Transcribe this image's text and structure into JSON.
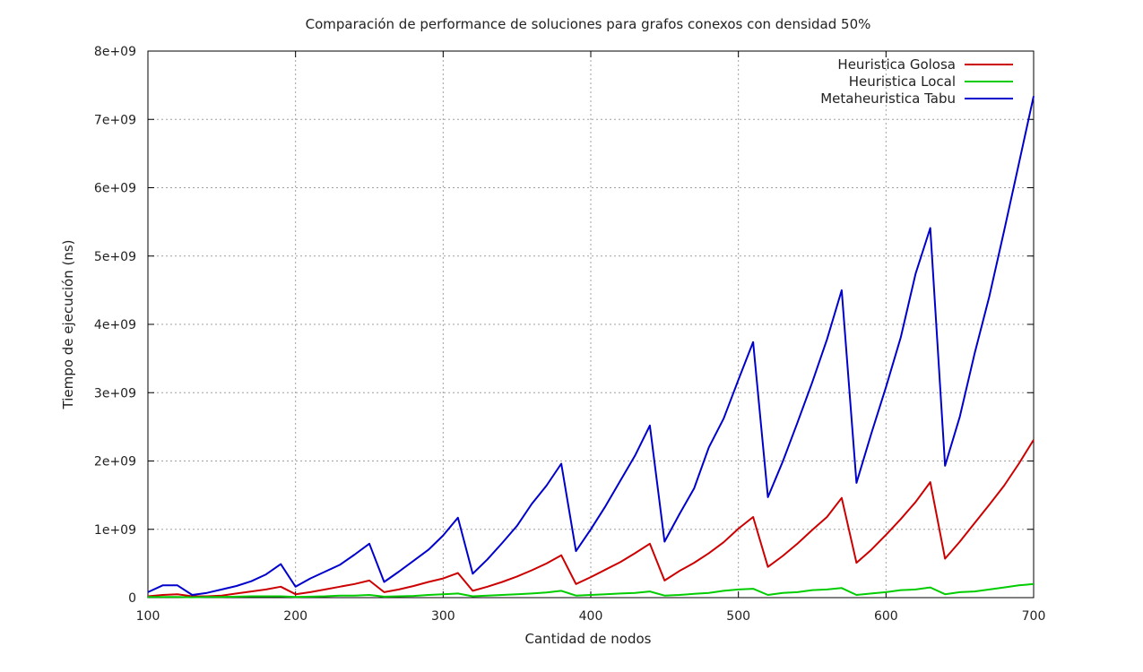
{
  "chart_data": {
    "type": "line",
    "title": "Comparación de performance de soluciones para grafos conexos con densidad 50%",
    "xlabel": "Cantidad de nodos",
    "ylabel": "Tiempo de ejecución (ns)",
    "xlim": [
      100,
      700
    ],
    "ylim": [
      0,
      8000000000
    ],
    "xticks": [
      100,
      200,
      300,
      400,
      500,
      600,
      700
    ],
    "xtick_labels": [
      "100",
      "200",
      "300",
      "400",
      "500",
      "600",
      "700"
    ],
    "yticks": [
      0,
      1000000000,
      2000000000,
      3000000000,
      4000000000,
      5000000000,
      6000000000,
      7000000000,
      8000000000
    ],
    "ytick_labels": [
      "0",
      "1e+09",
      "2e+09",
      "3e+09",
      "4e+09",
      "5e+09",
      "6e+09",
      "7e+09",
      "8e+09"
    ],
    "grid": true,
    "legend_position": "top-right",
    "x": [
      100,
      110,
      120,
      130,
      140,
      150,
      160,
      170,
      180,
      190,
      200,
      210,
      220,
      230,
      240,
      250,
      260,
      270,
      280,
      290,
      300,
      310,
      320,
      330,
      340,
      350,
      360,
      370,
      380,
      390,
      400,
      410,
      420,
      430,
      440,
      450,
      460,
      470,
      480,
      490,
      500,
      510,
      520,
      530,
      540,
      550,
      560,
      570,
      580,
      590,
      600,
      610,
      620,
      630,
      640,
      650,
      660,
      670,
      680,
      690,
      700
    ],
    "series": [
      {
        "name": "Heuristica Golosa",
        "color": "#cc0000",
        "values": [
          20000000,
          40000000,
          50000000,
          20000000,
          20000000,
          30000000,
          60000000,
          90000000,
          120000000,
          160000000,
          50000000,
          80000000,
          120000000,
          160000000,
          200000000,
          250000000,
          80000000,
          120000000,
          170000000,
          230000000,
          280000000,
          360000000,
          100000000,
          160000000,
          230000000,
          310000000,
          400000000,
          500000000,
          620000000,
          200000000,
          300000000,
          410000000,
          520000000,
          650000000,
          790000000,
          250000000,
          390000000,
          510000000,
          650000000,
          810000000,
          1010000000,
          1180000000,
          450000000,
          610000000,
          790000000,
          990000000,
          1180000000,
          1460000000,
          510000000,
          700000000,
          920000000,
          1150000000,
          1400000000,
          1690000000,
          570000000,
          820000000,
          1090000000,
          1360000000,
          1640000000,
          1960000000,
          2310000000
        ]
      },
      {
        "name": "Heuristica Local",
        "color": "#00cc00",
        "values": [
          10000000,
          10000000,
          10000000,
          5000000,
          10000000,
          10000000,
          15000000,
          20000000,
          20000000,
          20000000,
          10000000,
          15000000,
          20000000,
          30000000,
          30000000,
          40000000,
          15000000,
          20000000,
          25000000,
          40000000,
          50000000,
          60000000,
          20000000,
          30000000,
          40000000,
          50000000,
          60000000,
          75000000,
          100000000,
          30000000,
          40000000,
          50000000,
          60000000,
          70000000,
          90000000,
          30000000,
          40000000,
          55000000,
          70000000,
          100000000,
          120000000,
          130000000,
          40000000,
          70000000,
          80000000,
          110000000,
          120000000,
          140000000,
          40000000,
          60000000,
          80000000,
          110000000,
          120000000,
          150000000,
          50000000,
          80000000,
          90000000,
          120000000,
          150000000,
          180000000,
          200000000
        ]
      },
      {
        "name": "Metaheuristica Tabu",
        "color": "#0000cc",
        "values": [
          80000000,
          180000000,
          180000000,
          40000000,
          70000000,
          120000000,
          170000000,
          240000000,
          340000000,
          490000000,
          160000000,
          280000000,
          380000000,
          480000000,
          630000000,
          790000000,
          230000000,
          380000000,
          540000000,
          700000000,
          910000000,
          1170000000,
          350000000,
          560000000,
          800000000,
          1050000000,
          1370000000,
          1640000000,
          1960000000,
          680000000,
          1000000000,
          1340000000,
          1710000000,
          2080000000,
          2520000000,
          820000000,
          1220000000,
          1600000000,
          2200000000,
          2620000000,
          3190000000,
          3740000000,
          1470000000,
          1990000000,
          2560000000,
          3150000000,
          3780000000,
          4500000000,
          1680000000,
          2400000000,
          3080000000,
          3810000000,
          4740000000,
          5410000000,
          1930000000,
          2650000000,
          3570000000,
          4410000000,
          5370000000,
          6350000000,
          7340000000
        ]
      }
    ]
  }
}
